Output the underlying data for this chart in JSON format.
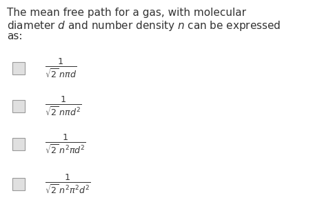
{
  "background_color": "#ffffff",
  "text_color": "#333333",
  "question_line1": "The mean free path for a gas, with molecular",
  "question_line2": "diameter $d$ and number density $n$ can be expressed",
  "question_line3": "as:",
  "options": [
    "$\\frac{1}{\\sqrt{2}\\,n\\pi d}$",
    "$\\frac{1}{\\sqrt{2}\\,n\\pi d^2}$",
    "$\\frac{1}{\\sqrt{2}\\,n^2\\pi d^2}$",
    "$\\frac{1}{\\sqrt{2}\\,n^2\\pi^2 d^2}$"
  ],
  "checkbox_color": "#e0e0e0",
  "checkbox_edge_color": "#999999",
  "checkbox_lw": 0.8,
  "question_fontsize": 11,
  "option_fontsize": 13
}
